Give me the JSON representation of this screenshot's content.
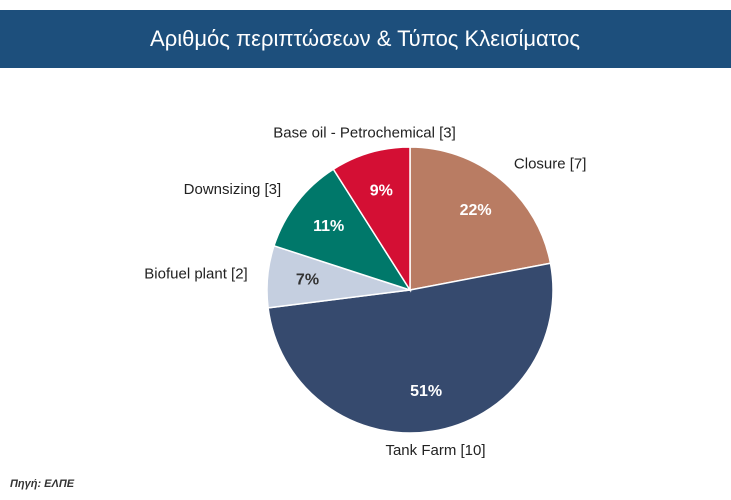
{
  "chart_data": {
    "type": "pie",
    "title": "Αριθμός περιπτώσεων & Τύπος  Κλεισίματος",
    "categories": [
      "Closure [7]",
      "Tank Farm [10]",
      "Biofuel plant [2]",
      "Downsizing [3]",
      "Base oil - Petrochemical [3]"
    ],
    "values": [
      22,
      51,
      7,
      11,
      9
    ],
    "value_labels": [
      "22%",
      "51%",
      "7%",
      "11%",
      "9%"
    ],
    "colors": [
      "#b97c63",
      "#364a6e",
      "#c5cfe0",
      "#00786a",
      "#d40f34"
    ],
    "source": "Πηγή: ΕΛΠΕ"
  }
}
